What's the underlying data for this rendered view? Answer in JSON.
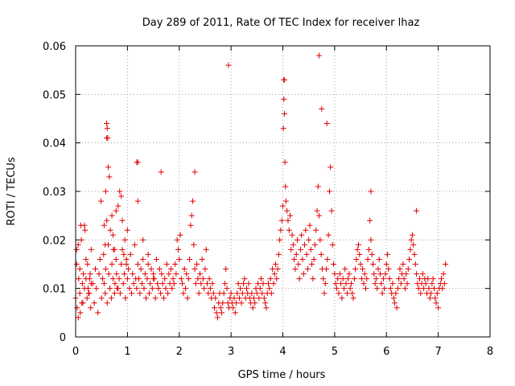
{
  "chart_data": {
    "type": "scatter",
    "title": "Day 289 of 2011, Rate Of TEC Index for receiver lhaz",
    "xlabel": "GPS time / hours",
    "ylabel": "ROTI / TECUs",
    "xlim": [
      0,
      8
    ],
    "ylim": [
      0,
      0.06
    ],
    "x_ticks": [
      "0",
      "1",
      "2",
      "3",
      "4",
      "5",
      "6",
      "7",
      "8"
    ],
    "y_ticks": [
      "0",
      "0.01",
      "0.02",
      "0.03",
      "0.04",
      "0.05",
      "0.06"
    ],
    "grid": true,
    "marker": "plus",
    "color": "#e00000",
    "series": [
      {
        "x": [
          0.0,
          0.02,
          0.03,
          0.05,
          0.06,
          0.08,
          0.09,
          0.1,
          0.12,
          0.13,
          0.15,
          0.17,
          0.18,
          0.2,
          0.22,
          0.24,
          0.25,
          0.27,
          0.29,
          0.3,
          0.02,
          0.05,
          0.08,
          0.11,
          0.14,
          0.17,
          0.2,
          0.23,
          0.26,
          0.28,
          0.3,
          0.33,
          0.36,
          0.38,
          0.4,
          0.43,
          0.45,
          0.47,
          0.49,
          0.5,
          0.52,
          0.54,
          0.55,
          0.57,
          0.58,
          0.6,
          0.61,
          0.63,
          0.64,
          0.66,
          0.67,
          0.69,
          0.7,
          0.72,
          0.73,
          0.75,
          0.76,
          0.78,
          0.79,
          0.8,
          0.55,
          0.57,
          0.58,
          0.6,
          0.61,
          0.62,
          0.63,
          0.65,
          0.7,
          0.72,
          0.75,
          0.78,
          0.82,
          0.85,
          0.88,
          0.9,
          0.93,
          0.95,
          0.98,
          1.0,
          0.82,
          0.84,
          0.86,
          0.88,
          0.9,
          0.92,
          0.94,
          0.96,
          0.98,
          1.0,
          1.02,
          1.04,
          1.06,
          1.08,
          1.1,
          1.12,
          1.14,
          1.16,
          1.18,
          1.2,
          1.22,
          1.24,
          1.26,
          1.28,
          1.3,
          1.32,
          1.34,
          1.36,
          1.38,
          1.4,
          1.42,
          1.44,
          1.46,
          1.48,
          1.5,
          1.52,
          1.54,
          1.56,
          1.58,
          1.6,
          1.18,
          1.2,
          1.3,
          1.4,
          1.5,
          1.6,
          1.62,
          1.64,
          1.66,
          1.68,
          1.7,
          1.72,
          1.74,
          1.76,
          1.78,
          1.8,
          1.82,
          1.84,
          1.86,
          1.88,
          1.9,
          1.92,
          1.94,
          1.96,
          1.98,
          2.0,
          2.02,
          2.04,
          2.06,
          2.08,
          2.1,
          2.12,
          2.14,
          2.16,
          2.18,
          2.2,
          2.22,
          2.24,
          2.26,
          2.28,
          2.3,
          2.32,
          2.34,
          2.36,
          2.38,
          2.4,
          2.42,
          2.44,
          2.46,
          2.48,
          2.5,
          2.52,
          2.54,
          2.56,
          2.58,
          2.6,
          2.62,
          2.64,
          2.66,
          2.68,
          2.7,
          2.72,
          2.74,
          2.76,
          2.78,
          2.8,
          2.82,
          2.84,
          2.86,
          2.88,
          2.9,
          2.92,
          2.94,
          2.96,
          2.98,
          3.0,
          3.02,
          3.04,
          3.06,
          3.08,
          3.1,
          3.12,
          3.14,
          3.16,
          3.18,
          3.2,
          3.22,
          3.24,
          3.26,
          3.28,
          3.3,
          3.32,
          3.34,
          3.36,
          3.38,
          3.4,
          3.42,
          3.44,
          3.46,
          3.48,
          3.5,
          3.52,
          3.54,
          3.56,
          3.58,
          3.6,
          3.62,
          3.64,
          3.66,
          3.68,
          3.7,
          3.72,
          3.74,
          3.76,
          3.78,
          3.8,
          3.82,
          3.84,
          3.86,
          3.88,
          3.9,
          3.92,
          3.94,
          3.96,
          3.98,
          4.0,
          4.01,
          4.02,
          4.03,
          4.04,
          4.05,
          4.06,
          4.08,
          4.1,
          4.12,
          4.14,
          4.16,
          4.18,
          4.2,
          4.22,
          4.24,
          4.26,
          4.28,
          4.3,
          4.32,
          4.34,
          4.36,
          4.38,
          4.4,
          4.42,
          4.44,
          4.46,
          4.48,
          4.5,
          4.52,
          4.54,
          4.56,
          4.58,
          4.6,
          4.62,
          4.64,
          4.66,
          4.68,
          4.7,
          4.72,
          4.74,
          4.76,
          4.78,
          4.8,
          4.82,
          4.84,
          4.86,
          4.88,
          4.9,
          4.92,
          4.94,
          4.96,
          4.98,
          5.0,
          5.02,
          5.04,
          5.06,
          5.08,
          5.1,
          5.12,
          5.14,
          5.16,
          5.18,
          5.2,
          5.22,
          5.24,
          5.26,
          5.28,
          5.3,
          5.32,
          5.34,
          5.36,
          5.38,
          5.4,
          5.42,
          5.44,
          5.46,
          5.48,
          5.5,
          5.52,
          5.54,
          5.56,
          5.58,
          5.6,
          5.62,
          5.64,
          5.66,
          5.68,
          5.7,
          5.72,
          5.74,
          5.76,
          5.78,
          5.8,
          5.82,
          5.84,
          5.86,
          5.88,
          5.9,
          5.92,
          5.94,
          5.96,
          5.98,
          6.0,
          6.02,
          6.04,
          6.06,
          6.08,
          6.1,
          6.12,
          6.14,
          6.16,
          6.18,
          6.2,
          6.22,
          6.24,
          6.26,
          6.28,
          6.3,
          6.32,
          6.34,
          6.36,
          6.38,
          6.4,
          6.42,
          6.44,
          6.46,
          6.48,
          6.5,
          6.52,
          6.54,
          6.56,
          6.58,
          6.6,
          6.62,
          6.64,
          6.66,
          6.68,
          6.7,
          6.72,
          6.74,
          6.76,
          6.78,
          6.8,
          6.82,
          6.84,
          6.86,
          6.88,
          6.9,
          6.92,
          6.94,
          6.96,
          6.98,
          7.0,
          7.02,
          7.04,
          7.06,
          7.08,
          7.1,
          7.12,
          7.14,
          2.95,
          4.7,
          4.02,
          4.03,
          4.75,
          4.85,
          0.6,
          1.2,
          1.65,
          2.3,
          5.7,
          6.58
        ],
        "y": [
          0.008,
          0.015,
          0.006,
          0.019,
          0.012,
          0.009,
          0.005,
          0.023,
          0.007,
          0.011,
          0.013,
          0.01,
          0.022,
          0.016,
          0.008,
          0.01,
          0.009,
          0.012,
          0.006,
          0.011,
          0.018,
          0.004,
          0.014,
          0.02,
          0.007,
          0.023,
          0.012,
          0.015,
          0.009,
          0.013,
          0.018,
          0.011,
          0.007,
          0.014,
          0.01,
          0.005,
          0.013,
          0.016,
          0.028,
          0.008,
          0.012,
          0.017,
          0.011,
          0.009,
          0.014,
          0.024,
          0.007,
          0.019,
          0.013,
          0.01,
          0.022,
          0.008,
          0.015,
          0.012,
          0.018,
          0.009,
          0.011,
          0.016,
          0.013,
          0.01,
          0.023,
          0.019,
          0.03,
          0.044,
          0.043,
          0.041,
          0.035,
          0.033,
          0.025,
          0.021,
          0.018,
          0.026,
          0.027,
          0.03,
          0.029,
          0.024,
          0.017,
          0.02,
          0.015,
          0.022,
          0.01,
          0.012,
          0.009,
          0.015,
          0.018,
          0.011,
          0.013,
          0.008,
          0.016,
          0.012,
          0.014,
          0.01,
          0.017,
          0.009,
          0.013,
          0.011,
          0.019,
          0.012,
          0.01,
          0.015,
          0.012,
          0.009,
          0.014,
          0.011,
          0.016,
          0.01,
          0.013,
          0.008,
          0.012,
          0.015,
          0.009,
          0.011,
          0.014,
          0.01,
          0.013,
          0.012,
          0.008,
          0.016,
          0.011,
          0.01,
          0.036,
          0.028,
          0.02,
          0.017,
          0.012,
          0.01,
          0.014,
          0.009,
          0.013,
          0.011,
          0.008,
          0.012,
          0.01,
          0.015,
          0.009,
          0.013,
          0.011,
          0.014,
          0.01,
          0.012,
          0.011,
          0.015,
          0.013,
          0.02,
          0.018,
          0.016,
          0.021,
          0.012,
          0.011,
          0.009,
          0.014,
          0.01,
          0.013,
          0.008,
          0.012,
          0.016,
          0.023,
          0.025,
          0.028,
          0.019,
          0.014,
          0.011,
          0.015,
          0.012,
          0.009,
          0.013,
          0.011,
          0.016,
          0.012,
          0.01,
          0.014,
          0.018,
          0.011,
          0.009,
          0.012,
          0.01,
          0.008,
          0.011,
          0.009,
          0.006,
          0.008,
          0.005,
          0.004,
          0.007,
          0.009,
          0.006,
          0.005,
          0.007,
          0.009,
          0.011,
          0.014,
          0.01,
          0.007,
          0.006,
          0.008,
          0.009,
          0.007,
          0.006,
          0.008,
          0.005,
          0.007,
          0.009,
          0.011,
          0.008,
          0.01,
          0.007,
          0.009,
          0.011,
          0.012,
          0.008,
          0.01,
          0.009,
          0.011,
          0.008,
          0.007,
          0.009,
          0.006,
          0.008,
          0.007,
          0.01,
          0.009,
          0.011,
          0.008,
          0.01,
          0.012,
          0.009,
          0.011,
          0.008,
          0.007,
          0.006,
          0.009,
          0.011,
          0.01,
          0.012,
          0.009,
          0.014,
          0.011,
          0.013,
          0.015,
          0.012,
          0.014,
          0.017,
          0.02,
          0.022,
          0.024,
          0.027,
          0.043,
          0.049,
          0.053,
          0.036,
          0.031,
          0.028,
          0.026,
          0.024,
          0.022,
          0.025,
          0.018,
          0.021,
          0.019,
          0.016,
          0.014,
          0.017,
          0.02,
          0.015,
          0.012,
          0.018,
          0.021,
          0.016,
          0.013,
          0.019,
          0.022,
          0.017,
          0.014,
          0.02,
          0.023,
          0.018,
          0.015,
          0.012,
          0.016,
          0.019,
          0.022,
          0.026,
          0.031,
          0.025,
          0.02,
          0.017,
          0.014,
          0.012,
          0.009,
          0.011,
          0.014,
          0.016,
          0.021,
          0.03,
          0.035,
          0.026,
          0.019,
          0.015,
          0.013,
          0.011,
          0.01,
          0.012,
          0.009,
          0.013,
          0.011,
          0.008,
          0.012,
          0.01,
          0.014,
          0.011,
          0.009,
          0.012,
          0.013,
          0.01,
          0.011,
          0.009,
          0.008,
          0.012,
          0.014,
          0.016,
          0.018,
          0.019,
          0.017,
          0.015,
          0.012,
          0.014,
          0.011,
          0.013,
          0.01,
          0.012,
          0.016,
          0.018,
          0.024,
          0.02,
          0.017,
          0.015,
          0.013,
          0.011,
          0.012,
          0.01,
          0.014,
          0.016,
          0.013,
          0.011,
          0.009,
          0.012,
          0.01,
          0.013,
          0.015,
          0.017,
          0.014,
          0.012,
          0.01,
          0.009,
          0.011,
          0.008,
          0.007,
          0.009,
          0.006,
          0.01,
          0.012,
          0.014,
          0.011,
          0.013,
          0.015,
          0.012,
          0.01,
          0.013,
          0.011,
          0.014,
          0.016,
          0.018,
          0.02,
          0.021,
          0.019,
          0.017,
          0.015,
          0.013,
          0.011,
          0.01,
          0.012,
          0.009,
          0.011,
          0.013,
          0.01,
          0.012,
          0.011,
          0.009,
          0.012,
          0.01,
          0.008,
          0.009,
          0.011,
          0.012,
          0.01,
          0.008,
          0.007,
          0.009,
          0.006,
          0.01,
          0.011,
          0.012,
          0.01,
          0.013,
          0.011,
          0.015,
          0.056,
          0.058,
          0.053,
          0.046,
          0.047,
          0.044,
          0.041,
          0.036,
          0.034,
          0.034,
          0.03,
          0.026
        ]
      }
    ]
  }
}
